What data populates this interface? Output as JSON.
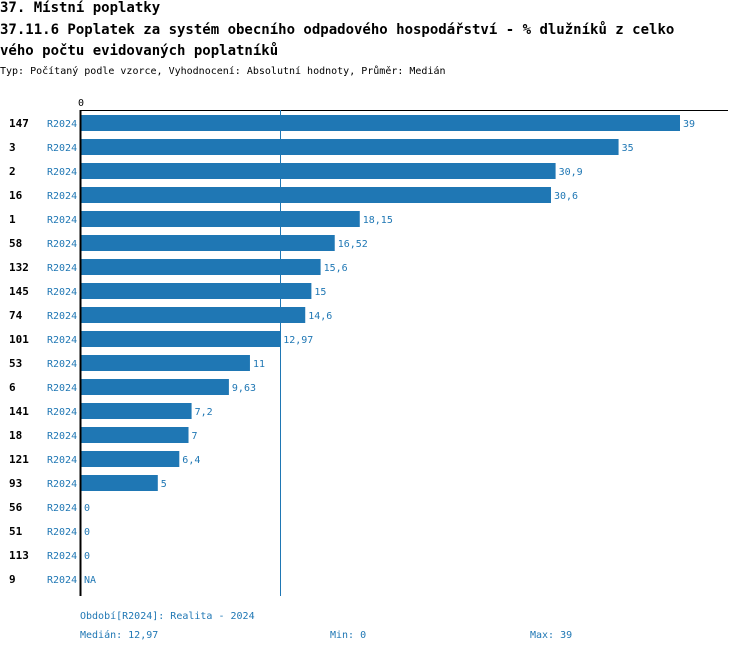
{
  "header": {
    "section": "37. Místní poplatky",
    "title_line1": "37.11.6 Poplatek za systém obecního odpadového hospodářství  - % dlužníků z celko",
    "title_line2": "vého počtu evidovaných poplatníků",
    "subtitle": "Typ: Počítaný podle vzorce, Vyhodnocení: Absolutní hodnoty, Průměr: Medián"
  },
  "colors": {
    "bar": "#1f77b4",
    "label": "#1f77b4",
    "axis": "#000000",
    "median_line": "#1f77b4"
  },
  "chart_data": {
    "type": "bar",
    "orientation": "horizontal",
    "axis_zero_label": "0",
    "xlim": [
      0,
      39
    ],
    "median": 12.97,
    "categories": [
      "147",
      "3",
      "2",
      "16",
      "1",
      "58",
      "132",
      "145",
      "74",
      "101",
      "53",
      "6",
      "141",
      "18",
      "121",
      "93",
      "56",
      "51",
      "113",
      "9"
    ],
    "series_label": "R2024",
    "values": [
      39,
      35,
      30.9,
      30.6,
      18.15,
      16.52,
      15.6,
      15,
      14.6,
      12.97,
      11,
      9.63,
      7.2,
      7,
      6.4,
      5,
      0,
      0,
      0,
      null
    ],
    "value_labels": [
      "39",
      "35",
      "30,9",
      "30,6",
      "18,15",
      "16,52",
      "15,6",
      "15",
      "14,6",
      "12,97",
      "11",
      "9,63",
      "7,2",
      "7",
      "6,4",
      "5",
      "0",
      "0",
      "0",
      "NA"
    ]
  },
  "footer": {
    "period": "Období[R2024]: Realita - 2024",
    "median": "Medián: 12,97",
    "min": "Min: 0",
    "max": "Max: 39"
  }
}
